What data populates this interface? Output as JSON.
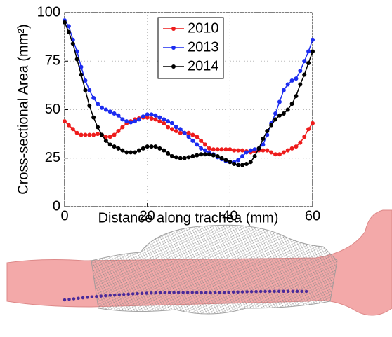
{
  "chart_data": {
    "type": "line",
    "xlabel": "Distance along trachea (mm)",
    "ylabel": "Cross-sectional Area (mm²)",
    "x": [
      0,
      1,
      2,
      3,
      4,
      5,
      6,
      7,
      8,
      9,
      10,
      11,
      12,
      13,
      14,
      15,
      16,
      17,
      18,
      19,
      20,
      21,
      22,
      23,
      24,
      25,
      26,
      27,
      28,
      29,
      30,
      31,
      32,
      33,
      34,
      35,
      36,
      37,
      38,
      39,
      40,
      41,
      42,
      43,
      44,
      45,
      46,
      47,
      48,
      49,
      50,
      51,
      52,
      53,
      54,
      55,
      56,
      57,
      58,
      59,
      60
    ],
    "series": [
      {
        "name": "2010",
        "color": "#ee1c1c",
        "values": [
          44,
          42,
          40,
          38,
          37,
          37,
          37,
          37,
          37.5,
          37,
          36,
          36,
          37,
          39,
          41,
          43,
          44,
          45,
          45.5,
          46,
          46,
          45.5,
          45,
          44,
          43,
          41,
          40,
          39,
          38,
          38,
          38,
          37,
          36,
          34,
          32,
          30,
          29.5,
          29.5,
          29.5,
          29.5,
          29.5,
          29,
          29,
          29,
          28.5,
          28,
          28.5,
          29,
          29,
          29,
          28,
          27,
          27,
          28,
          29,
          30,
          31,
          33,
          36,
          40,
          43
        ]
      },
      {
        "name": "2013",
        "color": "#1c2cf0",
        "values": [
          96,
          93,
          86,
          80,
          72,
          65,
          60,
          56,
          53,
          51,
          50,
          49,
          48,
          47,
          45,
          44,
          43.5,
          44,
          45,
          46.5,
          47.5,
          47.5,
          47,
          46,
          45,
          44,
          43,
          41,
          40,
          38,
          36,
          34,
          32,
          30,
          29,
          28,
          27,
          25.5,
          24.5,
          23.5,
          23,
          23,
          24,
          26,
          28,
          29,
          29.5,
          30,
          32,
          37,
          43,
          48,
          54,
          60,
          63,
          65,
          66,
          70,
          75,
          80,
          86
        ]
      },
      {
        "name": "2014",
        "color": "#000000",
        "values": [
          95,
          90,
          84,
          76,
          68,
          60,
          52,
          46,
          41,
          37,
          34,
          32,
          31,
          30,
          29,
          28,
          28,
          28,
          29,
          30,
          31,
          31,
          31,
          30,
          29,
          27.5,
          26,
          25.5,
          25,
          25,
          25.5,
          26,
          26.5,
          27,
          27,
          27,
          26.5,
          26,
          25,
          24,
          23,
          22,
          21.5,
          21.5,
          22,
          23,
          26,
          30,
          35,
          39,
          42,
          45,
          47,
          48,
          50,
          53,
          57,
          63,
          68,
          74,
          80
        ]
      }
    ],
    "xlim": [
      0,
      60
    ],
    "ylim": [
      0,
      100
    ],
    "xticks": [
      0,
      20,
      40,
      60
    ],
    "yticks": [
      0,
      25,
      50,
      75,
      100
    ],
    "grid": true,
    "legend": "top"
  }
}
